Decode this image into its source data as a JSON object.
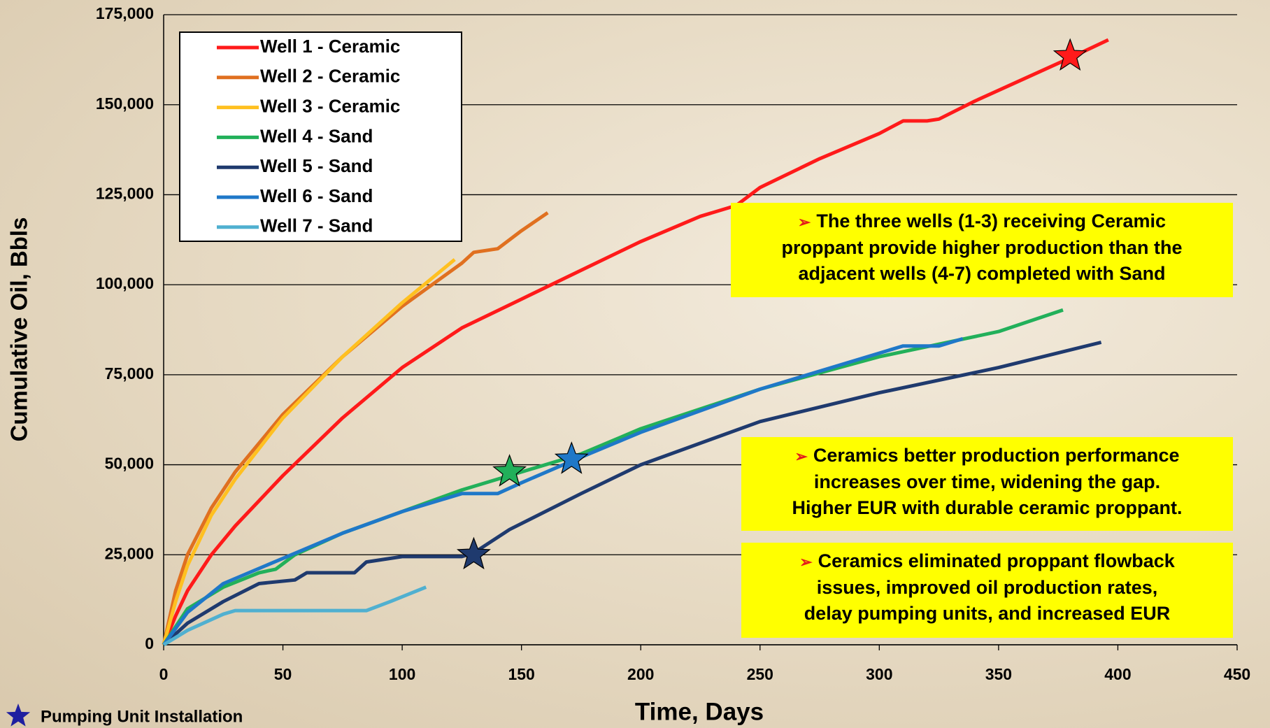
{
  "chart_data": {
    "type": "line",
    "xlabel": "Time, Days",
    "ylabel": "Cumulative Oil, Bbls",
    "xlim": [
      0,
      450
    ],
    "xticks": [
      0,
      50,
      100,
      150,
      200,
      250,
      300,
      350,
      400,
      450
    ],
    "ylim": [
      0,
      175000
    ],
    "yticks": [
      0,
      {
        "value": 25000,
        "label": "25,000"
      },
      {
        "value": 50000,
        "label": "50,000"
      },
      {
        "value": 75000,
        "label": "75,000"
      },
      {
        "value": 100000,
        "label": "100,000"
      },
      {
        "value": 125000,
        "label": "125,000"
      },
      {
        "value": 150000,
        "label": "150,000"
      },
      {
        "value": 175000,
        "label": "175,000"
      }
    ],
    "grid": true,
    "legend": "upper left",
    "series": [
      {
        "name": "Well 1 - Ceramic",
        "color": "#ff1a1a",
        "x": [
          0,
          5,
          10,
          20,
          30,
          50,
          75,
          100,
          125,
          150,
          175,
          200,
          225,
          240,
          250,
          275,
          300,
          310,
          320,
          325,
          340,
          360,
          380,
          396
        ],
        "values": [
          0,
          8000,
          15000,
          25000,
          33000,
          47000,
          63000,
          77000,
          88000,
          96000,
          104000,
          112000,
          119000,
          122000,
          127000,
          135000,
          142000,
          145500,
          145500,
          146000,
          151000,
          157000,
          163000,
          168000
        ]
      },
      {
        "name": "Well 2 - Ceramic",
        "color": "#e07020",
        "x": [
          0,
          5,
          10,
          20,
          30,
          50,
          75,
          100,
          125,
          130,
          140,
          150,
          161
        ],
        "values": [
          0,
          15000,
          25000,
          38000,
          48000,
          64000,
          80000,
          94000,
          106000,
          109000,
          110000,
          115000,
          120000
        ]
      },
      {
        "name": "Well 3 - Ceramic",
        "color": "#ffc020",
        "x": [
          0,
          5,
          10,
          20,
          30,
          50,
          75,
          100,
          122
        ],
        "values": [
          0,
          12000,
          22000,
          36000,
          46000,
          63000,
          80000,
          95000,
          107000
        ]
      },
      {
        "name": "Well 4 - Sand",
        "color": "#22b05a",
        "x": [
          0,
          10,
          25,
          40,
          47,
          55,
          75,
          100,
          125,
          150,
          175,
          200,
          250,
          300,
          350,
          377
        ],
        "values": [
          0,
          10000,
          16000,
          20000,
          21000,
          25000,
          31000,
          37000,
          43000,
          48000,
          53000,
          60000,
          71000,
          80000,
          87000,
          93000
        ]
      },
      {
        "name": "Well 5 - Sand",
        "color": "#1f3a6e",
        "x": [
          0,
          10,
          25,
          40,
          55,
          60,
          80,
          85,
          100,
          125,
          130,
          145,
          175,
          200,
          250,
          300,
          350,
          393
        ],
        "values": [
          0,
          6000,
          12000,
          17000,
          18000,
          20000,
          20000,
          23000,
          24500,
          24500,
          25500,
          32000,
          42000,
          50000,
          62000,
          70000,
          77000,
          84000
        ]
      },
      {
        "name": "Well 6 - Sand",
        "color": "#1f78c8",
        "x": [
          0,
          10,
          25,
          50,
          75,
          100,
          125,
          140,
          150,
          171,
          200,
          250,
          300,
          310,
          325,
          335
        ],
        "values": [
          0,
          9000,
          17000,
          24000,
          31000,
          37000,
          42000,
          42000,
          45000,
          51000,
          59000,
          71000,
          81000,
          83000,
          83000,
          85000
        ]
      },
      {
        "name": "Well 7 - Sand",
        "color": "#50b0d0",
        "x": [
          0,
          10,
          25,
          30,
          85,
          95,
          110
        ],
        "values": [
          0,
          4000,
          8500,
          9500,
          9500,
          12000,
          16000
        ]
      }
    ],
    "markers": [
      {
        "x": 380,
        "y": 163500,
        "color": "#ff1a1a"
      },
      {
        "x": 145,
        "y": 48000,
        "color": "#22b05a"
      },
      {
        "x": 171,
        "y": 51500,
        "color": "#1f78c8"
      },
      {
        "x": 130,
        "y": 25000,
        "color": "#1f3a6e"
      }
    ],
    "marker_legend": {
      "label": "Pumping Unit Installation",
      "color": "#1f1fa0"
    },
    "annotations": [
      {
        "lines": [
          "The three wells (1-3) receiving Ceramic",
          "proppant provide higher production than the",
          "adjacent wells (4-7) completed with Sand"
        ]
      },
      {
        "lines": [
          "Ceramics better production performance",
          "increases over time, widening the gap.",
          "Higher EUR with durable ceramic proppant."
        ]
      },
      {
        "lines": [
          "Ceramics eliminated proppant flowback",
          "issues, improved oil production rates,",
          "delay pumping units, and increased EUR"
        ]
      }
    ]
  }
}
